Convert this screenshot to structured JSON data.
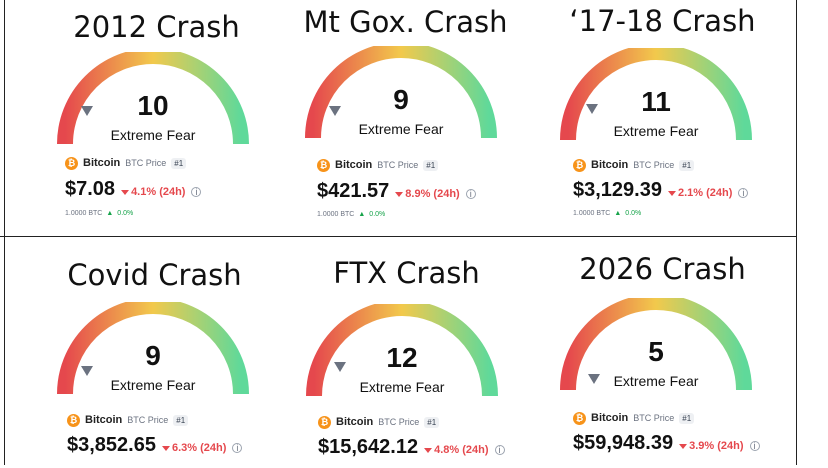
{
  "panels": [
    {
      "title": "2012 Crash",
      "score": "10",
      "label": "Extreme Fear",
      "coin": "Bitcoin",
      "sub": "BTC Price",
      "rank": "#1",
      "price": "$7.08",
      "change": "4.1% (24h)",
      "amount": "1.0000 BTC",
      "delta": "0.0%"
    },
    {
      "title": "Mt Gox. Crash",
      "score": "9",
      "label": "Extreme Fear",
      "coin": "Bitcoin",
      "sub": "BTC Price",
      "rank": "#1",
      "price": "$421.57",
      "change": "8.9% (24h)",
      "amount": "1.0000 BTC",
      "delta": "0.0%"
    },
    {
      "title": "‘17-18 Crash",
      "score": "11",
      "label": "Extreme Fear",
      "coin": "Bitcoin",
      "sub": "BTC Price",
      "rank": "#1",
      "price": "$3,129.39",
      "change": "2.1% (24h)",
      "amount": "1.0000 BTC",
      "delta": "0.0%"
    },
    {
      "title": "Covid Crash",
      "score": "9",
      "label": "Extreme Fear",
      "coin": "Bitcoin",
      "sub": "BTC Price",
      "rank": "#1",
      "price": "$3,852.65",
      "change": "6.3% (24h)"
    },
    {
      "title": "FTX Crash",
      "score": "12",
      "label": "Extreme Fear",
      "coin": "Bitcoin",
      "sub": "BTC Price",
      "rank": "#1",
      "price": "$15,642.12",
      "change": "4.8% (24h)"
    },
    {
      "title": "2026 Crash",
      "score": "5",
      "label": "Extreme Fear",
      "coin": "Bitcoin",
      "sub": "BTC Price",
      "rank": "#1",
      "price": "$59,948.39",
      "change": "3.9% (24h)"
    }
  ],
  "colors": {
    "fear": "#e5484d",
    "neutral": "#f2c94c",
    "greed": "#5fd99a",
    "btc": "#f7931a"
  },
  "icons": {
    "coin": "bitcoin-icon",
    "change": "down-triangle-icon",
    "info": "info-icon",
    "delta": "up-triangle-icon"
  }
}
